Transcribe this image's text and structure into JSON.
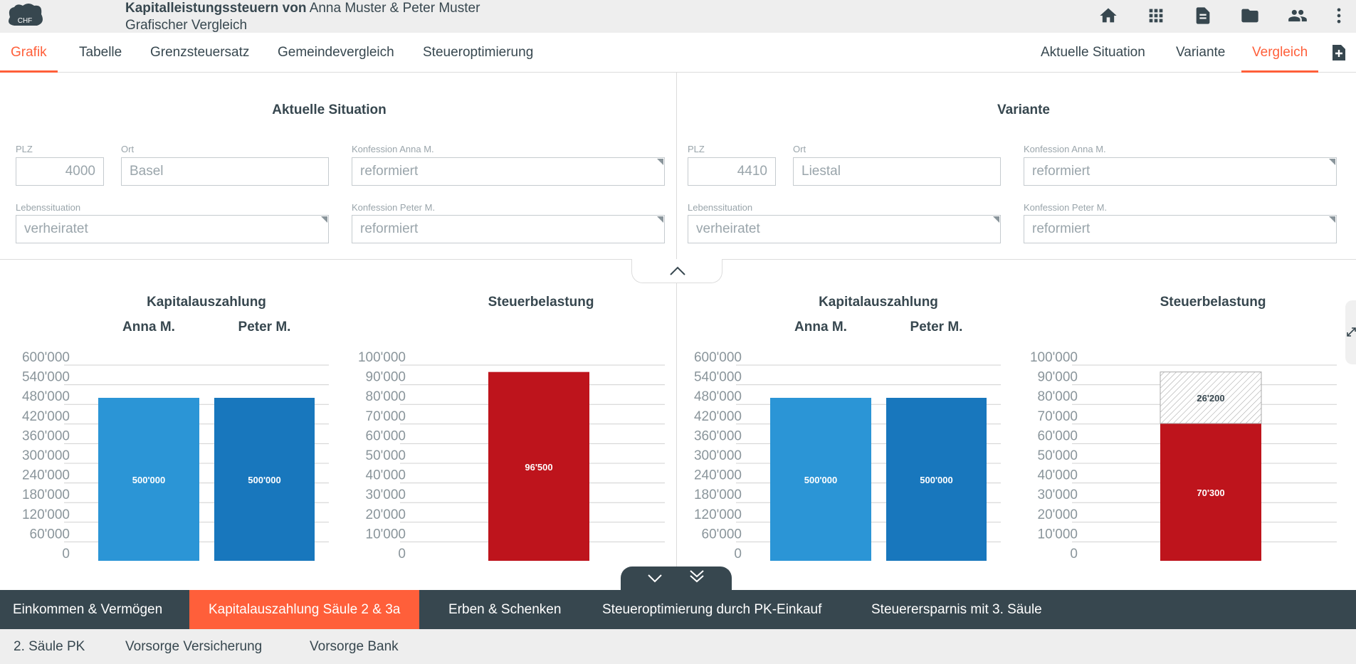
{
  "header": {
    "title_bold": "Kapitalleistungssteuern von",
    "title_rest": "Anna Muster & Peter Muster",
    "subtitle": "Grafischer Vergleich",
    "logo_text": "CHF",
    "icons": [
      "home-icon",
      "apps-grid-icon",
      "document-icon",
      "folder-icon",
      "people-icon",
      "more-vertical-icon"
    ]
  },
  "tabs_left": [
    "Grafik",
    "Tabelle",
    "Grenzsteuersatz",
    "Gemeindevergleich",
    "Steueroptimierung"
  ],
  "tabs_right": [
    "Aktuelle Situation",
    "Variante",
    "Vergleich"
  ],
  "colors": {
    "accent": "#ff5f3a",
    "dark": "#37474f",
    "bar_anna": "#2b95d6",
    "bar_peter": "#1877bd",
    "bar_tax": "#be141c"
  },
  "left_panel": {
    "title": "Aktuelle Situation",
    "plz_label": "PLZ",
    "plz": "4000",
    "ort_label": "Ort",
    "ort": "Basel",
    "konf_anna_label": "Konfession Anna M.",
    "konf_anna": "reformiert",
    "leben_label": "Lebenssituation",
    "leben": "verheiratet",
    "konf_peter_label": "Konfession Peter M.",
    "konf_peter": "reformiert"
  },
  "right_panel": {
    "title": "Variante",
    "plz_label": "PLZ",
    "plz": "4410",
    "ort_label": "Ort",
    "ort": "Liestal",
    "konf_anna_label": "Konfession Anna M.",
    "konf_anna": "reformiert",
    "leben_label": "Lebenssituation",
    "leben": "verheiratet",
    "konf_peter_label": "Konfession Peter M.",
    "konf_peter": "reformiert"
  },
  "chart_data": [
    {
      "type": "bar",
      "title": "Kapitalauszahlung",
      "categories": [
        "Anna M.",
        "Peter M."
      ],
      "values": [
        500000,
        500000
      ],
      "labels": [
        "500'000",
        "500'000"
      ],
      "yticks": [
        "0",
        "60'000",
        "120'000",
        "180'000",
        "240'000",
        "300'000",
        "360'000",
        "420'000",
        "480'000",
        "540'000",
        "600'000"
      ],
      "ylim": [
        0,
        600000
      ],
      "grid": true
    },
    {
      "type": "bar",
      "title": "Steuerbelastung",
      "categories": [
        ""
      ],
      "values": [
        96500
      ],
      "labels": [
        "96'500"
      ],
      "yticks": [
        "0",
        "10'000",
        "20'000",
        "30'000",
        "40'000",
        "50'000",
        "60'000",
        "70'000",
        "80'000",
        "90'000",
        "100'000"
      ],
      "ylim": [
        0,
        100000
      ],
      "grid": true
    },
    {
      "type": "bar",
      "title": "Kapitalauszahlung",
      "categories": [
        "Anna M.",
        "Peter M."
      ],
      "values": [
        500000,
        500000
      ],
      "labels": [
        "500'000",
        "500'000"
      ],
      "yticks": [
        "0",
        "60'000",
        "120'000",
        "180'000",
        "240'000",
        "300'000",
        "360'000",
        "420'000",
        "480'000",
        "540'000",
        "600'000"
      ],
      "ylim": [
        0,
        600000
      ],
      "grid": true
    },
    {
      "type": "bar",
      "title": "Steuerbelastung",
      "categories": [
        ""
      ],
      "series": [
        {
          "values": [
            70300
          ],
          "labels": [
            "70'300"
          ]
        },
        {
          "values": [
            26200
          ],
          "labels": [
            "26'200"
          ]
        }
      ],
      "yticks": [
        "0",
        "10'000",
        "20'000",
        "30'000",
        "40'000",
        "50'000",
        "60'000",
        "70'000",
        "80'000",
        "90'000",
        "100'000"
      ],
      "ylim": [
        0,
        100000
      ],
      "grid": true,
      "stacked": true
    }
  ],
  "bottom_nav": [
    "Einkommen & Vermögen",
    "Kapitalauszahlung Säule 2 & 3a",
    "Erben & Schenken",
    "Steueroptimierung durch PK-Einkauf",
    "Steuerersparnis mit 3. Säule"
  ],
  "sub_nav": [
    "2. Säule PK",
    "Vorsorge Versicherung",
    "Vorsorge Bank"
  ]
}
